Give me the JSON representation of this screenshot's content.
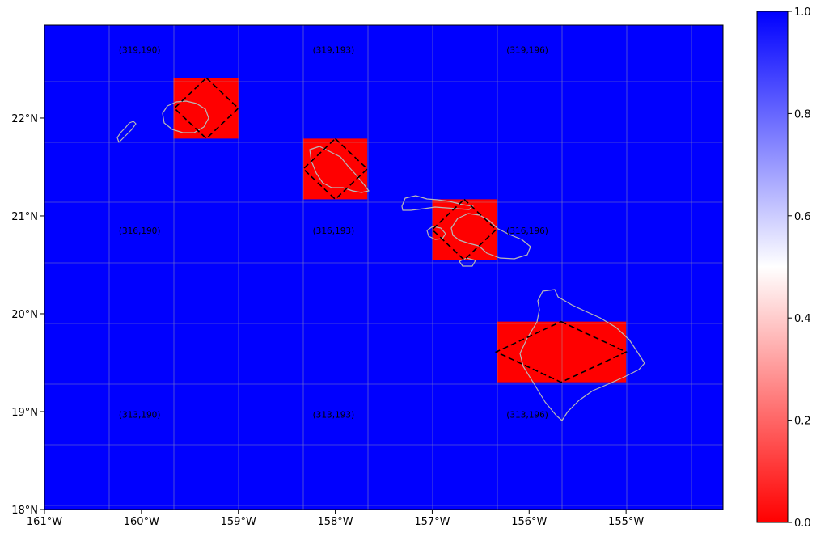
{
  "map": {
    "x_ticks": [
      "161°W",
      "160°W",
      "159°W",
      "158°W",
      "157°W",
      "156°W",
      "155°W"
    ],
    "y_ticks": [
      "18°N",
      "19°N",
      "20°N",
      "21°N",
      "22°N"
    ],
    "extent": {
      "lon_min": -161.0,
      "lon_max": -154.0,
      "lat_min": 18.0,
      "lat_max": 22.95
    },
    "background_color": "#0000ff",
    "highlight_color": "#ff0000",
    "grid": true,
    "cell_labels": [
      {
        "text": "(319,190)",
        "lon": -160.0,
        "lat": 22.7
      },
      {
        "text": "(319,193)",
        "lon": -158.0,
        "lat": 22.7
      },
      {
        "text": "(319,196)",
        "lon": -156.0,
        "lat": 22.7
      },
      {
        "text": "(316,190)",
        "lon": -160.0,
        "lat": 20.85
      },
      {
        "text": "(316,193)",
        "lon": -158.0,
        "lat": 20.85
      },
      {
        "text": "(316,196)",
        "lon": -156.0,
        "lat": 20.85
      },
      {
        "text": "(313,190)",
        "lon": -160.0,
        "lat": 18.97
      },
      {
        "text": "(313,193)",
        "lon": -158.0,
        "lat": 18.97
      },
      {
        "text": "(313,196)",
        "lon": -156.0,
        "lat": 18.97
      }
    ],
    "highlight_cells": [
      {
        "name": "kauai-cell",
        "lon0": -159.67,
        "lon1": -159.0,
        "lat0": 21.79,
        "lat1": 22.41
      },
      {
        "name": "oahu-cell",
        "lon0": -158.33,
        "lon1": -157.67,
        "lat0": 21.17,
        "lat1": 21.79
      },
      {
        "name": "maui-cell",
        "lon0": -157.0,
        "lon1": -156.33,
        "lat0": 20.55,
        "lat1": 21.17
      },
      {
        "name": "hawaii-cell",
        "lon0": -156.33,
        "lon1": -155.0,
        "lat0": 19.3,
        "lat1": 19.92
      }
    ],
    "diamonds": [
      {
        "name": "kauai-diamond",
        "lon": -159.33,
        "lat": 22.1,
        "rlon": 0.33,
        "rlat": 0.31
      },
      {
        "name": "oahu-diamond",
        "lon": -158.0,
        "lat": 21.48,
        "rlon": 0.33,
        "rlat": 0.31
      },
      {
        "name": "maui-diamond",
        "lon": -156.67,
        "lat": 20.86,
        "rlon": 0.33,
        "rlat": 0.31
      },
      {
        "name": "hawaii-diamond",
        "lon": -155.67,
        "lat": 19.61,
        "rlon": 0.67,
        "rlat": 0.31
      }
    ]
  },
  "colorbar": {
    "ticks": [
      "0.0",
      "0.2",
      "0.4",
      "0.6",
      "0.8",
      "1.0"
    ],
    "tick_values": [
      0.0,
      0.2,
      0.4,
      0.6,
      0.8,
      1.0
    ],
    "colormap": [
      "#ff0000",
      "#ffffff",
      "#0000ff"
    ]
  }
}
